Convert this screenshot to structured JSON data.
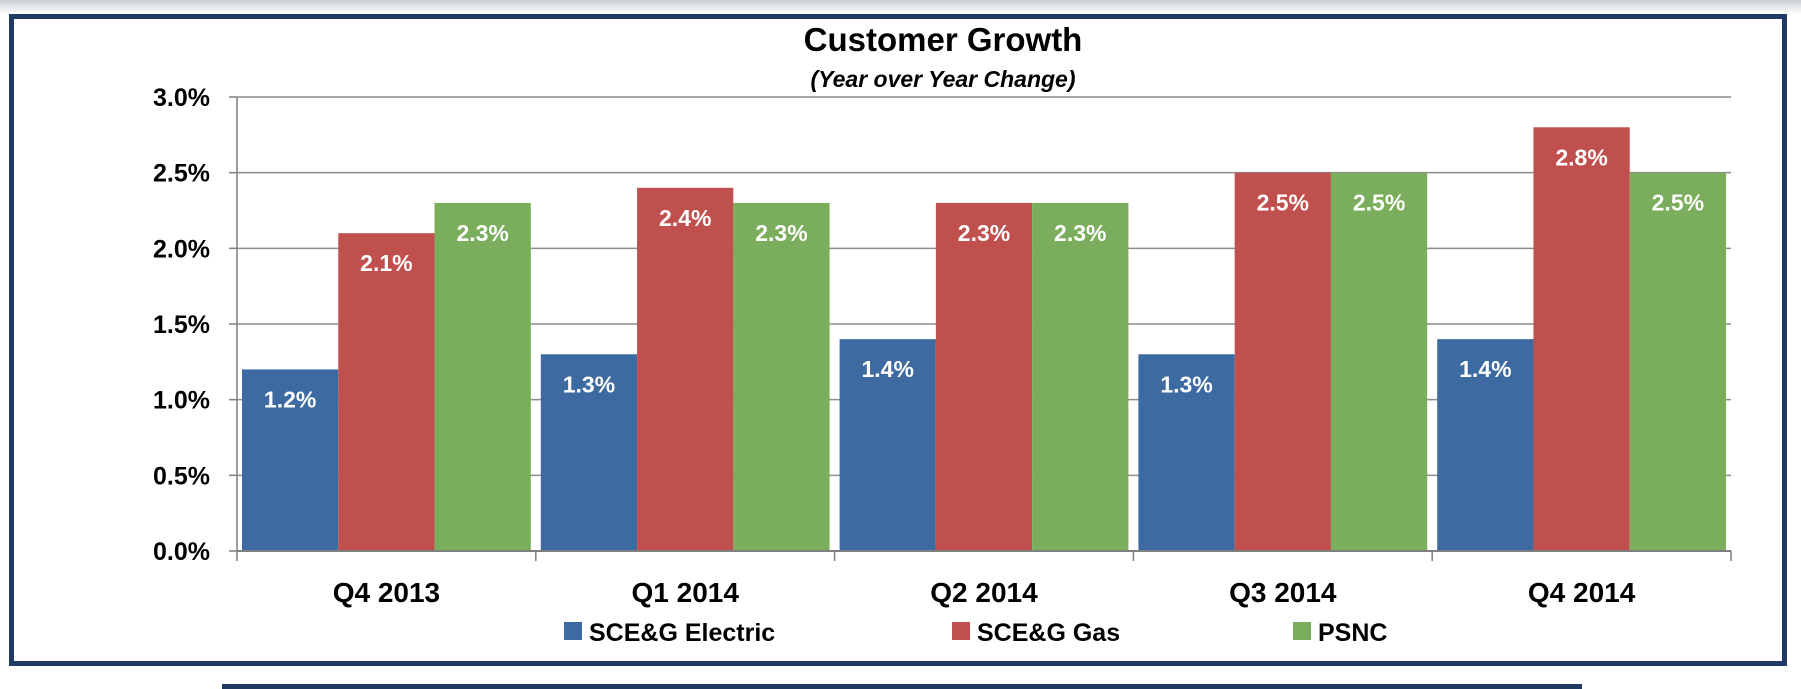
{
  "chart_data": {
    "type": "bar",
    "title": "Customer Growth",
    "subtitle": "(Year over Year Change)",
    "categories": [
      "Q4 2013",
      "Q1 2014",
      "Q2 2014",
      "Q3 2014",
      "Q4 2014"
    ],
    "series": [
      {
        "name": "SCE&G Electric",
        "color": "#3d6aa0",
        "values": [
          1.2,
          1.3,
          1.4,
          1.3,
          1.4
        ],
        "labels": [
          "1.2%",
          "1.3%",
          "1.4%",
          "1.3%",
          "1.4%"
        ]
      },
      {
        "name": "SCE&G Gas",
        "color": "#c0504d",
        "values": [
          2.1,
          2.4,
          2.3,
          2.5,
          2.8
        ],
        "labels": [
          "2.1%",
          "2.4%",
          "2.3%",
          "2.5%",
          "2.8%"
        ]
      },
      {
        "name": "PSNC",
        "color": "#7bae5c",
        "values": [
          2.3,
          2.3,
          2.3,
          2.5,
          2.5
        ],
        "labels": [
          "2.3%",
          "2.3%",
          "2.3%",
          "2.5%",
          "2.5%"
        ]
      }
    ],
    "ylim": [
      0,
      3.0
    ],
    "yticks": [
      0,
      0.5,
      1.0,
      1.5,
      2.0,
      2.5,
      3.0
    ],
    "ytick_labels": [
      "0.0%",
      "0.5%",
      "1.0%",
      "1.5%",
      "2.0%",
      "2.5%",
      "3.0%"
    ],
    "xlabel": "",
    "ylabel": "",
    "grid": true,
    "legend_position": "bottom"
  },
  "colors": {
    "frame": "#1f3864",
    "gridline": "#8c8c8c",
    "axis": "#7f7f7f"
  }
}
